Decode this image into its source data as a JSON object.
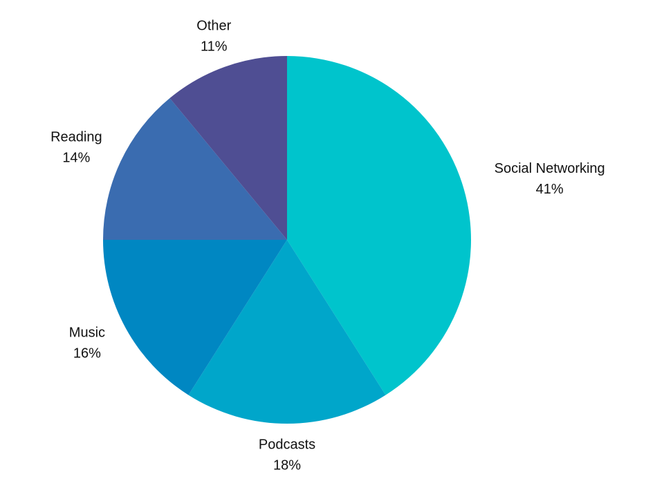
{
  "chart_data": {
    "type": "pie",
    "categories": [
      "Social Networking",
      "Podcasts",
      "Music",
      "Reading",
      "Other"
    ],
    "values": [
      41,
      18,
      16,
      14,
      11
    ],
    "value_labels": [
      "41%",
      "18%",
      "16%",
      "14%",
      "11%"
    ],
    "colors": [
      "#00c4cc",
      "#00a6ca",
      "#0087c2",
      "#3a6cb0",
      "#4f4e93"
    ]
  }
}
